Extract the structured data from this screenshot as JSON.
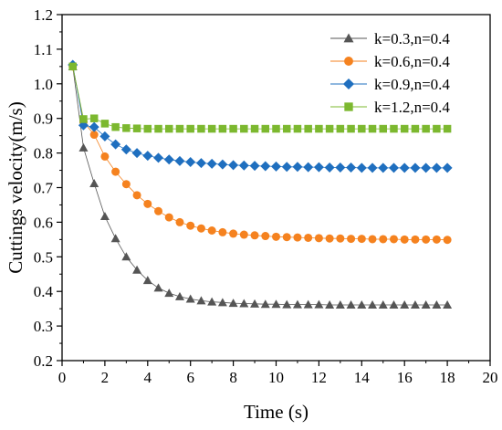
{
  "chart_data": {
    "type": "line",
    "xlabel": "Time (s)",
    "ylabel": "Cuttings velocity(m/s)",
    "xlim": [
      0,
      20
    ],
    "ylim": [
      0.2,
      1.2
    ],
    "xticks": [
      0,
      2,
      4,
      6,
      8,
      10,
      12,
      14,
      16,
      18,
      20
    ],
    "yticks": [
      0.2,
      0.3,
      0.4,
      0.5,
      0.6,
      0.7,
      0.8,
      0.9,
      1.0,
      1.1,
      1.2
    ],
    "xtick_labels": [
      "0",
      "2",
      "4",
      "6",
      "8",
      "10",
      "12",
      "14",
      "16",
      "18",
      "20"
    ],
    "ytick_labels": [
      "0.2",
      "0.3",
      "0.4",
      "0.5",
      "0.6",
      "0.7",
      "0.8",
      "0.9",
      "1.0",
      "1.1",
      "1.2"
    ],
    "grid": false,
    "legend_position": "top-right",
    "x": [
      0.5,
      1,
      1.5,
      2,
      2.5,
      3,
      3.5,
      4,
      4.5,
      5,
      5.5,
      6,
      6.5,
      7,
      7.5,
      8,
      8.5,
      9,
      9.5,
      10,
      10.5,
      11,
      11.5,
      12,
      12.5,
      13,
      13.5,
      14,
      14.5,
      15,
      15.5,
      16,
      16.5,
      17,
      17.5,
      18
    ],
    "series": [
      {
        "name": "k=0.3,n=0.4",
        "marker": "triangle",
        "color": "#555555",
        "values": [
          1.05,
          0.815,
          0.712,
          0.617,
          0.553,
          0.5,
          0.462,
          0.432,
          0.41,
          0.395,
          0.385,
          0.378,
          0.373,
          0.37,
          0.368,
          0.366,
          0.365,
          0.364,
          0.363,
          0.363,
          0.362,
          0.362,
          0.362,
          0.362,
          0.361,
          0.361,
          0.361,
          0.361,
          0.361,
          0.361,
          0.361,
          0.361,
          0.361,
          0.361,
          0.361,
          0.361
        ]
      },
      {
        "name": "k=0.6,n=0.4",
        "marker": "circle",
        "color": "#f5821f",
        "values": [
          1.05,
          0.89,
          0.853,
          0.79,
          0.746,
          0.71,
          0.678,
          0.653,
          0.632,
          0.614,
          0.6,
          0.59,
          0.582,
          0.576,
          0.571,
          0.567,
          0.564,
          0.562,
          0.56,
          0.558,
          0.557,
          0.556,
          0.555,
          0.554,
          0.553,
          0.553,
          0.552,
          0.552,
          0.551,
          0.551,
          0.551,
          0.55,
          0.55,
          0.55,
          0.55,
          0.549
        ]
      },
      {
        "name": "k=0.9,n=0.4",
        "marker": "diamond",
        "color": "#1f6fbf",
        "values": [
          1.055,
          0.88,
          0.875,
          0.848,
          0.825,
          0.81,
          0.8,
          0.792,
          0.786,
          0.781,
          0.777,
          0.774,
          0.771,
          0.769,
          0.767,
          0.765,
          0.764,
          0.763,
          0.762,
          0.761,
          0.76,
          0.76,
          0.759,
          0.759,
          0.758,
          0.758,
          0.758,
          0.757,
          0.757,
          0.757,
          0.757,
          0.757,
          0.757,
          0.757,
          0.757,
          0.757
        ]
      },
      {
        "name": "k=1.2,n=0.4",
        "marker": "square",
        "color": "#7cb82f",
        "values": [
          1.05,
          0.898,
          0.9,
          0.885,
          0.875,
          0.872,
          0.871,
          0.87,
          0.87,
          0.87,
          0.87,
          0.87,
          0.87,
          0.87,
          0.87,
          0.87,
          0.87,
          0.87,
          0.87,
          0.87,
          0.87,
          0.87,
          0.87,
          0.87,
          0.87,
          0.87,
          0.87,
          0.87,
          0.87,
          0.87,
          0.87,
          0.87,
          0.87,
          0.87,
          0.87,
          0.87
        ]
      }
    ]
  }
}
